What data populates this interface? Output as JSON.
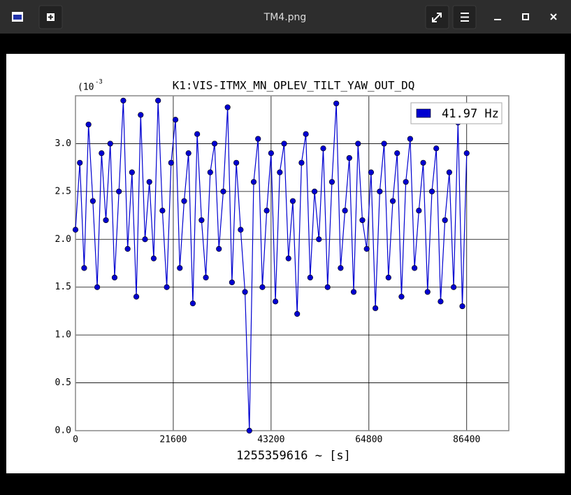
{
  "window": {
    "title": "TM4.png"
  },
  "chart_data": {
    "type": "line",
    "title": "K1:VIS-ITMX_MN_OPLEV_TILT_YAW_OUT_DQ",
    "x_label": "1255359616 ~ [s]",
    "y_scale_label": "(10",
    "y_scale_exponent": "-3",
    "x": [
      0,
      960,
      1920,
      2880,
      3840,
      4800,
      5760,
      6720,
      7680,
      8640,
      9600,
      10560,
      11520,
      12480,
      13440,
      14400,
      15360,
      16320,
      17280,
      18240,
      19200,
      20160,
      21120,
      22080,
      23040,
      24000,
      24960,
      25920,
      26880,
      27840,
      28800,
      29760,
      30720,
      31680,
      32640,
      33600,
      34560,
      35520,
      36480,
      37440,
      38400,
      39360,
      40320,
      41280,
      42240,
      43200,
      44160,
      45120,
      46080,
      47040,
      48000,
      48960,
      49920,
      50880,
      51840,
      52800,
      53760,
      54720,
      55680,
      56640,
      57600,
      58560,
      59520,
      60480,
      61440,
      62400,
      63360,
      64320,
      65280,
      66240,
      67200,
      68160,
      69120,
      70080,
      71040,
      72000,
      72960,
      73920,
      74880,
      75840,
      76800,
      77760,
      78720,
      79680,
      80640,
      81600,
      82560,
      83520,
      84480,
      85440,
      86400
    ],
    "series": [
      {
        "name": "41.97 Hz",
        "color": "#0000d0",
        "values": [
          2.1,
          2.8,
          1.7,
          3.2,
          2.4,
          1.5,
          2.9,
          2.2,
          3.0,
          1.6,
          2.5,
          3.45,
          1.9,
          2.7,
          1.4,
          3.3,
          2.0,
          2.6,
          1.8,
          3.45,
          2.3,
          1.5,
          2.8,
          3.25,
          1.7,
          2.4,
          2.9,
          1.33,
          3.1,
          2.2,
          1.6,
          2.7,
          3.0,
          1.9,
          2.5,
          3.38,
          1.55,
          2.8,
          2.1,
          1.45,
          0.0,
          2.6,
          3.05,
          1.5,
          2.3,
          2.9,
          1.35,
          2.7,
          3.0,
          1.8,
          2.4,
          1.22,
          2.8,
          3.1,
          1.6,
          2.5,
          2.0,
          2.95,
          1.5,
          2.6,
          3.42,
          1.7,
          2.3,
          2.85,
          1.45,
          3.0,
          2.2,
          1.9,
          2.7,
          1.28,
          2.5,
          3.0,
          1.6,
          2.4,
          2.9,
          1.4,
          2.6,
          3.05,
          1.7,
          2.3,
          2.8,
          1.45,
          2.5,
          2.95,
          1.35,
          2.2,
          2.7,
          1.5,
          3.22,
          1.3,
          2.9
        ]
      }
    ],
    "xlim": [
      0,
      95700
    ],
    "xticks": [
      0,
      21600,
      43200,
      64800,
      86400
    ],
    "ylim": [
      0,
      3.5
    ],
    "yticks": [
      {
        "value": 0,
        "label": "0.0"
      },
      0.5,
      {
        "value": 1,
        "label": "1.0"
      },
      1.5,
      {
        "value": 2,
        "label": "2.0"
      },
      2.5,
      {
        "value": 3,
        "label": "3.0"
      }
    ],
    "grid": true,
    "legend": "upper right"
  }
}
